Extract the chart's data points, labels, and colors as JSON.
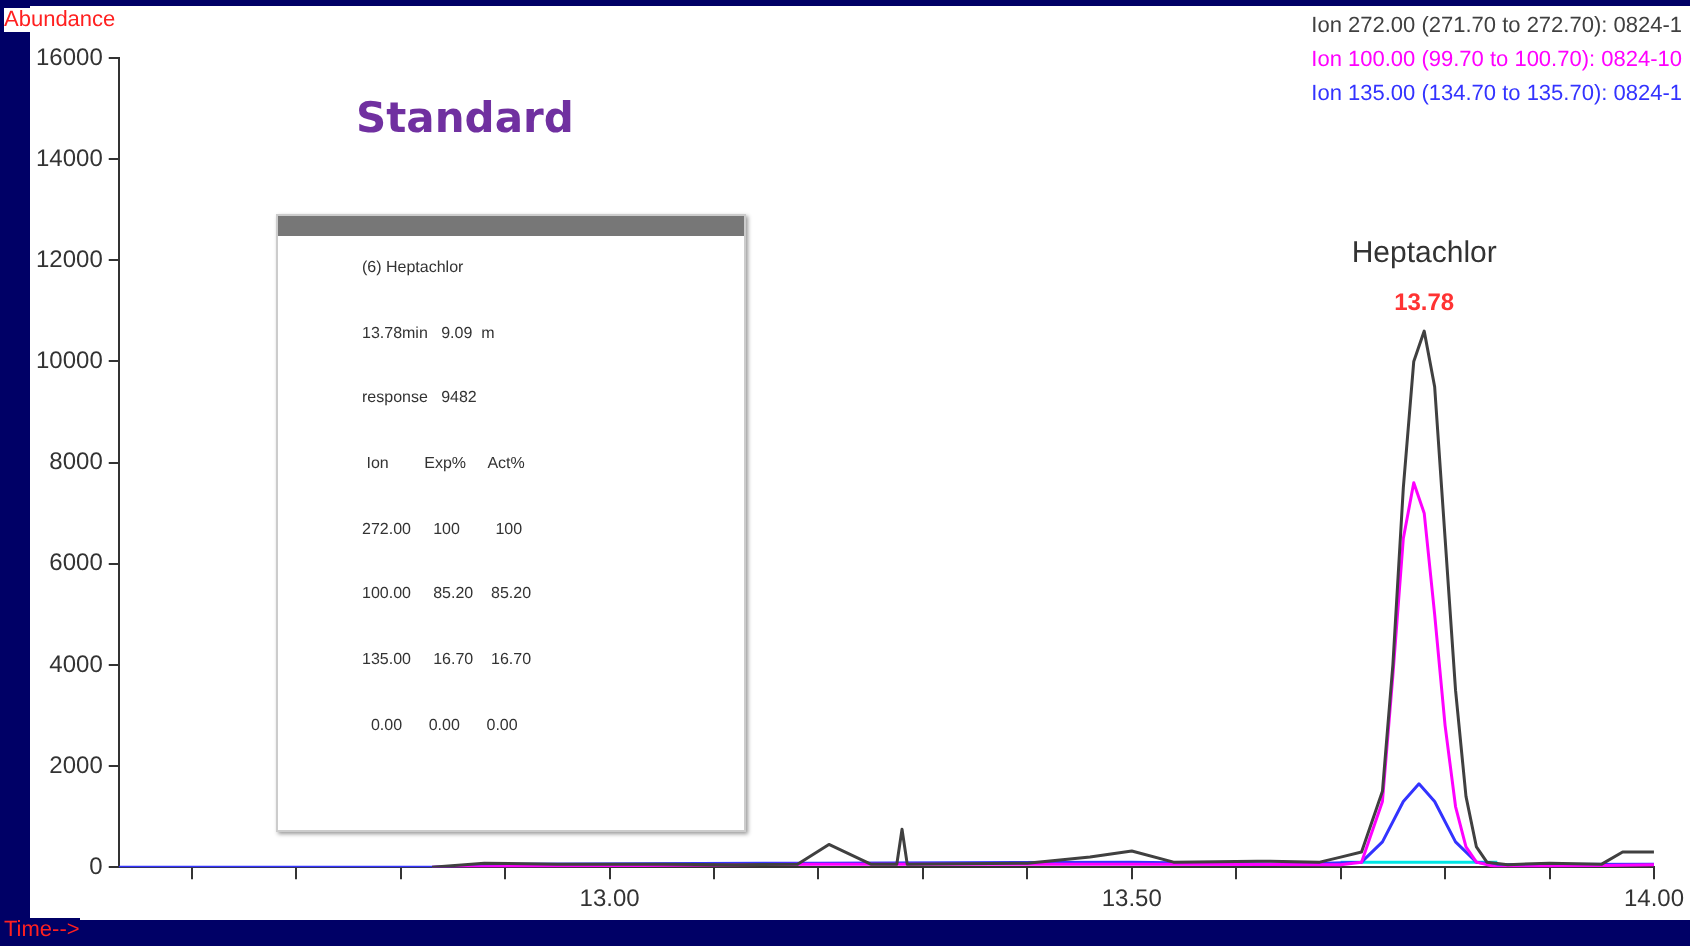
{
  "chart_data": {
    "type": "line",
    "title": "Standard",
    "xlabel": "Time-->",
    "ylabel": "Abundance",
    "xlim": [
      12.53,
      14.0
    ],
    "ylim": [
      0,
      16000
    ],
    "xticks": [
      {
        "value": 12.6,
        "label": null
      },
      {
        "value": 12.7,
        "label": null
      },
      {
        "value": 12.8,
        "label": null
      },
      {
        "value": 12.9,
        "label": null
      },
      {
        "value": 13.0,
        "label": "13.00"
      },
      {
        "value": 13.1,
        "label": null
      },
      {
        "value": 13.2,
        "label": null
      },
      {
        "value": 13.3,
        "label": null
      },
      {
        "value": 13.4,
        "label": null
      },
      {
        "value": 13.5,
        "label": "13.50"
      },
      {
        "value": 13.6,
        "label": null
      },
      {
        "value": 13.7,
        "label": null
      },
      {
        "value": 13.8,
        "label": null
      },
      {
        "value": 13.9,
        "label": null
      },
      {
        "value": 14.0,
        "label": "14.00"
      }
    ],
    "yticks": [
      0,
      2000,
      4000,
      6000,
      8000,
      10000,
      12000,
      14000,
      16000
    ],
    "grid": false,
    "marker": "none",
    "line_style": "solid",
    "series": [
      {
        "name": "Ion 272.00 (271.70 to 272.70): 0824-1",
        "color": "#404040",
        "x": [
          12.83,
          12.88,
          12.95,
          13.05,
          13.12,
          13.18,
          13.21,
          13.25,
          13.275,
          13.28,
          13.285,
          13.4,
          13.46,
          13.5,
          13.54,
          13.62,
          13.68,
          13.7,
          13.72,
          13.74,
          13.75,
          13.76,
          13.77,
          13.78,
          13.79,
          13.8,
          13.81,
          13.82,
          13.83,
          13.84,
          13.86,
          13.9,
          13.95,
          13.97,
          14.0
        ],
        "values": [
          0,
          80,
          60,
          60,
          50,
          60,
          450,
          60,
          60,
          750,
          60,
          80,
          200,
          320,
          100,
          120,
          100,
          200,
          300,
          1500,
          4000,
          7500,
          10000,
          10600,
          9500,
          6500,
          3500,
          1400,
          400,
          100,
          50,
          80,
          60,
          300,
          300
        ]
      },
      {
        "name": "Ion 100.00 (99.70 to 100.70): 0824-10",
        "color": "#ff00ff",
        "x": [
          12.83,
          13.2,
          13.5,
          13.7,
          13.72,
          13.74,
          13.75,
          13.76,
          13.77,
          13.78,
          13.79,
          13.8,
          13.81,
          13.82,
          13.83,
          13.85,
          14.0
        ],
        "values": [
          0,
          60,
          60,
          50,
          100,
          1300,
          3800,
          6500,
          7600,
          7000,
          5000,
          2800,
          1200,
          400,
          100,
          0,
          50
        ]
      },
      {
        "name": "Ion 135.00 (134.70 to 135.70): 0824-1",
        "color": "#3333ff",
        "x": [
          12.53,
          12.83,
          12.9,
          13.2,
          13.5,
          13.65,
          13.72,
          13.74,
          13.76,
          13.775,
          13.79,
          13.81,
          13.83,
          13.85,
          14.0
        ],
        "values": [
          0,
          0,
          60,
          80,
          100,
          60,
          100,
          500,
          1300,
          1650,
          1300,
          500,
          100,
          50,
          60
        ]
      },
      {
        "color": "#00e5e5",
        "x": [
          13.7,
          13.85
        ],
        "values": [
          100,
          100
        ]
      }
    ],
    "annotations": [
      {
        "text": "Heptachlor",
        "x": 13.78,
        "y": 10600
      },
      {
        "text": "13.78",
        "x": 13.78,
        "y": 10600
      },
      "(6) Heptachlor",
      "13.78min   9.09  m",
      "response   9482",
      " Ion        Exp%     Act%",
      "272.00     100        100",
      "100.00     85.20    85.20",
      "135.00     16.70    16.70",
      "  0.00      0.00      0.00"
    ]
  }
}
